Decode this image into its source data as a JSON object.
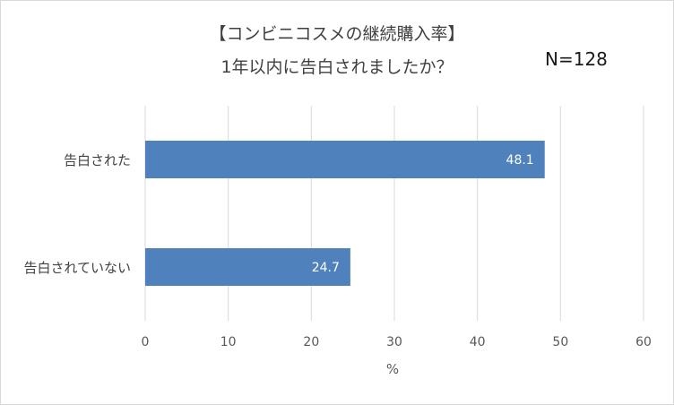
{
  "chart_data": {
    "type": "bar",
    "orientation": "horizontal",
    "title": "【コンビニコスメの継続購入率】",
    "subtitle": "1年以内に告白されましたか？",
    "annotation": "N=128",
    "categories": [
      "告白された",
      "告白されていない"
    ],
    "values": [
      48.1,
      24.7
    ],
    "data_labels": [
      "48.1",
      "24.7"
    ],
    "xlabel": "%",
    "ylabel": "",
    "xlim": [
      0,
      60
    ],
    "xticks": [
      0,
      10,
      20,
      30,
      40,
      50,
      60
    ],
    "grid": true,
    "legend": "none",
    "bar_color": "#4f81bd",
    "grid_color": "#d9d9d9"
  }
}
